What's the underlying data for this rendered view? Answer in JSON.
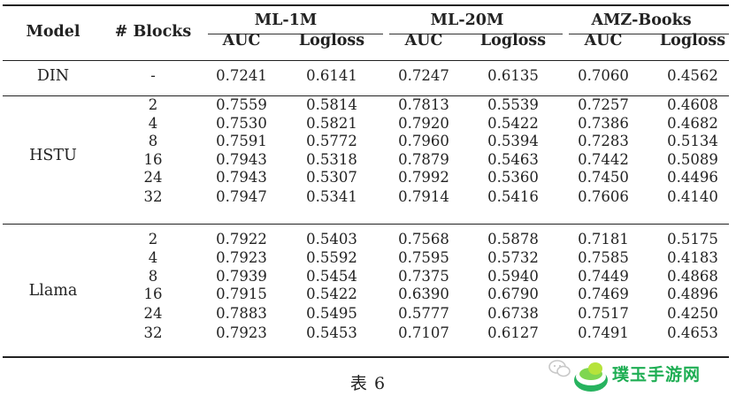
{
  "header": {
    "model": "Model",
    "blocks": "# Blocks",
    "groups": [
      "ML-1M",
      "ML-20M",
      "AMZ-Books"
    ],
    "metrics": [
      "AUC",
      "Logloss",
      "AUC",
      "Logloss",
      "AUC",
      "Logloss"
    ]
  },
  "rows": [
    {
      "model": "DIN",
      "blocks": "-",
      "values": [
        "0.7241",
        "0.6141",
        "0.7247",
        "0.6135",
        "0.7060",
        "0.4562"
      ]
    },
    {
      "model": "HSTU",
      "blocks": "2",
      "values": [
        "0.7559",
        "0.5814",
        "0.7813",
        "0.5539",
        "0.7257",
        "0.4608"
      ]
    },
    {
      "model": "",
      "blocks": "4",
      "values": [
        "0.7530",
        "0.5821",
        "0.7920",
        "0.5422",
        "0.7386",
        "0.4682"
      ]
    },
    {
      "model": "",
      "blocks": "8",
      "values": [
        "0.7591",
        "0.5772",
        "0.7960",
        "0.5394",
        "0.7283",
        "0.5134"
      ]
    },
    {
      "model": "",
      "blocks": "16",
      "values": [
        "0.7943",
        "0.5318",
        "0.7879",
        "0.5463",
        "0.7442",
        "0.5089"
      ]
    },
    {
      "model": "",
      "blocks": "24",
      "values": [
        "0.7943",
        "0.5307",
        "0.7992",
        "0.5360",
        "0.7450",
        "0.4496"
      ]
    },
    {
      "model": "",
      "blocks": "32",
      "values": [
        "0.7947",
        "0.5341",
        "0.7914",
        "0.5416",
        "0.7606",
        "0.4140"
      ]
    },
    {
      "model": "Llama",
      "blocks": "2",
      "values": [
        "0.7922",
        "0.5403",
        "0.7568",
        "0.5878",
        "0.7181",
        "0.5175"
      ]
    },
    {
      "model": "",
      "blocks": "4",
      "values": [
        "0.7923",
        "0.5592",
        "0.7595",
        "0.5732",
        "0.7585",
        "0.4183"
      ]
    },
    {
      "model": "",
      "blocks": "8",
      "values": [
        "0.7939",
        "0.5454",
        "0.7375",
        "0.5940",
        "0.7449",
        "0.4868"
      ]
    },
    {
      "model": "",
      "blocks": "16",
      "values": [
        "0.7915",
        "0.5422",
        "0.6390",
        "0.6790",
        "0.7469",
        "0.4896"
      ]
    },
    {
      "model": "",
      "blocks": "24",
      "values": [
        "0.7883",
        "0.5495",
        "0.5777",
        "0.6738",
        "0.7517",
        "0.4250"
      ]
    },
    {
      "model": "",
      "blocks": "32",
      "values": [
        "0.7923",
        "0.5453",
        "0.7107",
        "0.6127",
        "0.7491",
        "0.4653"
      ]
    }
  ],
  "caption": "表 6",
  "watermark": {
    "text": "璞玉手游网",
    "icon": "wechat-icon",
    "color": "#1fae54"
  }
}
